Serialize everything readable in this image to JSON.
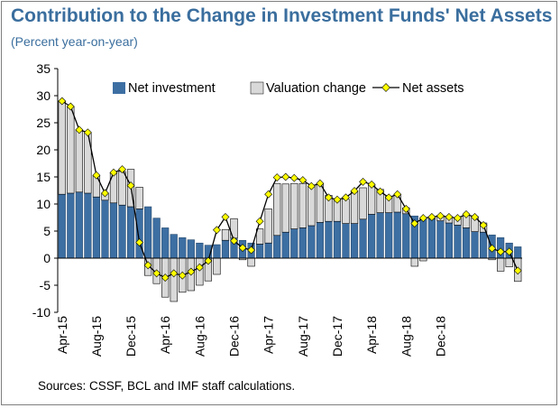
{
  "title": "Contribution to the Change in Investment Funds' Net Assets",
  "subtitle": "(Percent year-on-year)",
  "source": "Sources: CSSF, BCL and IMF staff calculations.",
  "colors": {
    "net_investment": "#3d6fa3",
    "valuation_change": "#d9d9d9",
    "net_assets_line": "#000000",
    "net_assets_marker": "#ffff00",
    "title": "#3a6e9e"
  },
  "chart_data": {
    "type": "bar",
    "stacked": true,
    "x_tick_labels": [
      "Apr-15",
      "Aug-15",
      "Dec-15",
      "Apr-16",
      "Aug-16",
      "Dec-16",
      "Apr-17",
      "Aug-17",
      "Dec-17",
      "Apr-18",
      "Aug-18",
      "Dec-18"
    ],
    "x_tick_every": 4,
    "yticks": [
      -10,
      -5,
      0,
      5,
      10,
      15,
      20,
      25,
      30,
      35
    ],
    "ylim": [
      -10,
      35
    ],
    "grid": false,
    "legend_position": "top",
    "series": [
      {
        "name": "Net investment",
        "type": "bar",
        "values": [
          11.8,
          12.0,
          12.2,
          12.0,
          11.3,
          10.7,
          10.2,
          9.8,
          9.5,
          9.1,
          9.5,
          7.4,
          5.6,
          4.4,
          3.8,
          3.4,
          2.8,
          2.4,
          2.5,
          3.3,
          3.7,
          3.3,
          2.8,
          2.6,
          2.8,
          4.2,
          4.8,
          5.4,
          5.6,
          6.0,
          6.6,
          6.8,
          6.8,
          6.4,
          6.4,
          7.2,
          8.1,
          8.4,
          8.4,
          8.5,
          8.2,
          7.8,
          7.3,
          7.2,
          6.9,
          6.5,
          6.1,
          5.6,
          4.9,
          4.8,
          4.3,
          3.8,
          2.8,
          2.1
        ]
      },
      {
        "name": "Valuation change",
        "type": "bar",
        "values": [
          17.2,
          16.0,
          11.5,
          11.2,
          4.0,
          1.3,
          5.6,
          6.2,
          6.9,
          4.0,
          -3.2,
          -4.7,
          -7.2,
          -8.0,
          -6.3,
          -6.0,
          -5.0,
          -4.2,
          -3.0,
          2.0,
          3.6,
          -0.3,
          -1.5,
          2.8,
          6.3,
          9.6,
          8.9,
          8.4,
          8.2,
          7.2,
          7.2,
          4.8,
          4.0,
          4.5,
          5.9,
          5.8,
          5.4,
          4.3,
          3.0,
          3.3,
          1.1,
          -1.5,
          -0.5,
          0.4,
          1.0,
          1.2,
          1.4,
          2.3,
          2.8,
          1.7,
          -0.3,
          -2.4,
          -1.6,
          -4.3
        ]
      },
      {
        "name": "Net assets",
        "type": "line",
        "values": [
          29.0,
          28.0,
          23.7,
          23.2,
          15.3,
          12.0,
          15.8,
          16.4,
          13.4,
          2.9,
          -1.3,
          -2.8,
          -3.6,
          -2.8,
          -3.2,
          -2.5,
          -1.7,
          -0.5,
          5.2,
          7.6,
          3.2,
          1.9,
          1.5,
          6.8,
          11.8,
          14.9,
          15.0,
          14.8,
          14.4,
          13.3,
          13.8,
          11.2,
          10.8,
          11.2,
          12.4,
          14.1,
          13.6,
          12.3,
          11.2,
          11.8,
          9.1,
          6.4,
          7.4,
          7.6,
          7.8,
          7.6,
          7.4,
          8.1,
          7.6,
          6.1,
          1.8,
          1.2,
          1.2,
          -2.3
        ]
      }
    ]
  }
}
